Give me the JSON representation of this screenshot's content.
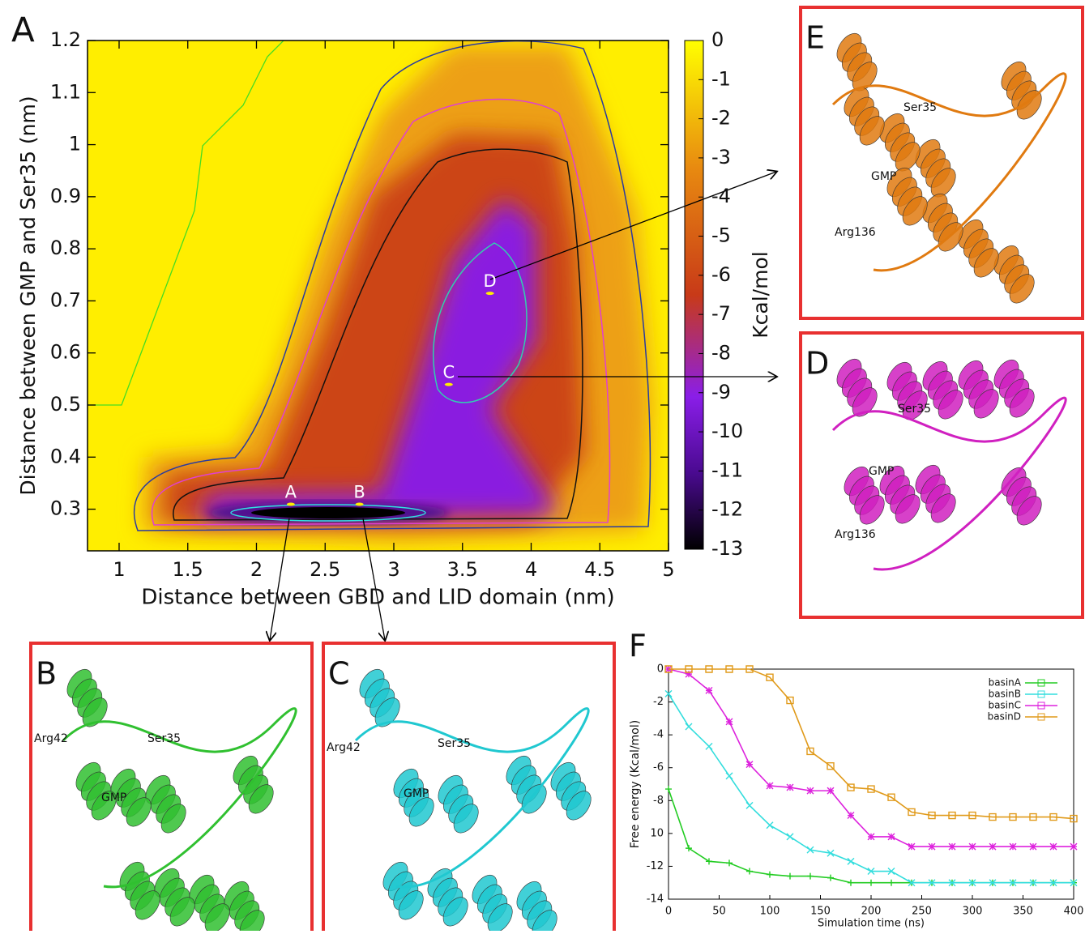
{
  "chart_data": [
    {
      "type": "contour",
      "panel": "A",
      "xlabel": "Distance between GBD and LID domain (nm)",
      "ylabel": "Distance between GMP and Ser35 (nm)",
      "xlim": [
        0.77,
        5
      ],
      "xticks": [
        1,
        1.5,
        2,
        2.5,
        3,
        3.5,
        4,
        4.5,
        5
      ],
      "ylim": [
        0.22,
        1.2
      ],
      "yticks": [
        0.3,
        0.4,
        0.5,
        0.6,
        0.7,
        0.8,
        0.9,
        1,
        1.1,
        1.2
      ],
      "colorbar": {
        "label": "Kcal/mol",
        "lim": [
          -13,
          0
        ],
        "ticks": [
          0,
          -1,
          -2,
          -3,
          -4,
          -5,
          -6,
          -7,
          -8,
          -9,
          -10,
          -11,
          -12,
          -13
        ]
      },
      "annotations": [
        {
          "text": "A",
          "x": 2.25,
          "y": 0.325
        },
        {
          "text": "B",
          "x": 2.75,
          "y": 0.325
        },
        {
          "text": "C",
          "x": 3.4,
          "y": 0.555
        },
        {
          "text": "D",
          "x": 3.7,
          "y": 0.73
        }
      ]
    },
    {
      "type": "line",
      "panel": "F",
      "xlabel": "Simulation time (ns)",
      "ylabel": "Free energy (Kcal/mol)",
      "x": [
        0,
        20,
        40,
        60,
        80,
        100,
        120,
        140,
        160,
        180,
        200,
        220,
        240,
        260,
        280,
        300,
        320,
        340,
        360,
        380,
        400
      ],
      "xlim": [
        0,
        400
      ],
      "xticks": [
        0,
        50,
        100,
        150,
        200,
        250,
        300,
        350,
        400
      ],
      "ylim": [
        -14,
        0
      ],
      "yticks": [
        0,
        -2,
        -4,
        -6,
        -8,
        {
          "value": -10,
          "label": "10"
        },
        -12,
        -14
      ],
      "legend": "upper right",
      "series": [
        {
          "name": "basinA",
          "color": "#22cc22",
          "marker": "plus",
          "values": [
            -7.3,
            -10.9,
            -11.7,
            -11.8,
            -12.3,
            -12.5,
            -12.6,
            -12.6,
            -12.7,
            -13.0,
            -13.0,
            -13.0,
            -13.0,
            -13.0,
            -13.0,
            -13.0,
            -13.0,
            -13.0,
            -13.0,
            -13.0,
            -13.0
          ]
        },
        {
          "name": "basinB",
          "color": "#33dddd",
          "marker": "cross",
          "values": [
            -1.5,
            -3.5,
            -4.7,
            -6.5,
            -8.3,
            -9.5,
            -10.2,
            -11.0,
            -11.2,
            -11.7,
            -12.3,
            -12.3,
            -13.0,
            -13.0,
            -13.0,
            -13.0,
            -13.0,
            -13.0,
            -13.0,
            -13.0,
            -13.0
          ]
        },
        {
          "name": "basinC",
          "color": "#dd22dd",
          "marker": "star",
          "values": [
            0,
            -0.3,
            -1.3,
            -3.2,
            -5.8,
            -7.1,
            -7.2,
            -7.4,
            -7.4,
            -8.9,
            -10.2,
            -10.2,
            -10.8,
            -10.8,
            -10.8,
            -10.8,
            -10.8,
            -10.8,
            -10.8,
            -10.8,
            -10.8
          ]
        },
        {
          "name": "basinD",
          "color": "#e09a1a",
          "marker": "square",
          "values": [
            0,
            0,
            0,
            0,
            0,
            -0.5,
            -1.9,
            -5.0,
            -5.9,
            -7.2,
            -7.3,
            -7.8,
            -8.7,
            -8.9,
            -8.9,
            -8.9,
            -9.0,
            -9.0,
            -9.0,
            -9.0,
            -9.1
          ]
        }
      ]
    }
  ],
  "structures": [
    {
      "panel": "E",
      "color": "#e07a10",
      "labels": [
        "Ser35",
        "GMP",
        "Arg136"
      ]
    },
    {
      "panel": "D",
      "color": "#d020c0",
      "labels": [
        "Ser35",
        "GMP",
        "Arg136"
      ]
    },
    {
      "panel": "B",
      "color": "#30c030",
      "labels": [
        "Ser35",
        "Arg42",
        "GMP"
      ]
    },
    {
      "panel": "C",
      "color": "#20c8d0",
      "labels": [
        "Ser35",
        "Arg42",
        "GMP"
      ]
    }
  ]
}
